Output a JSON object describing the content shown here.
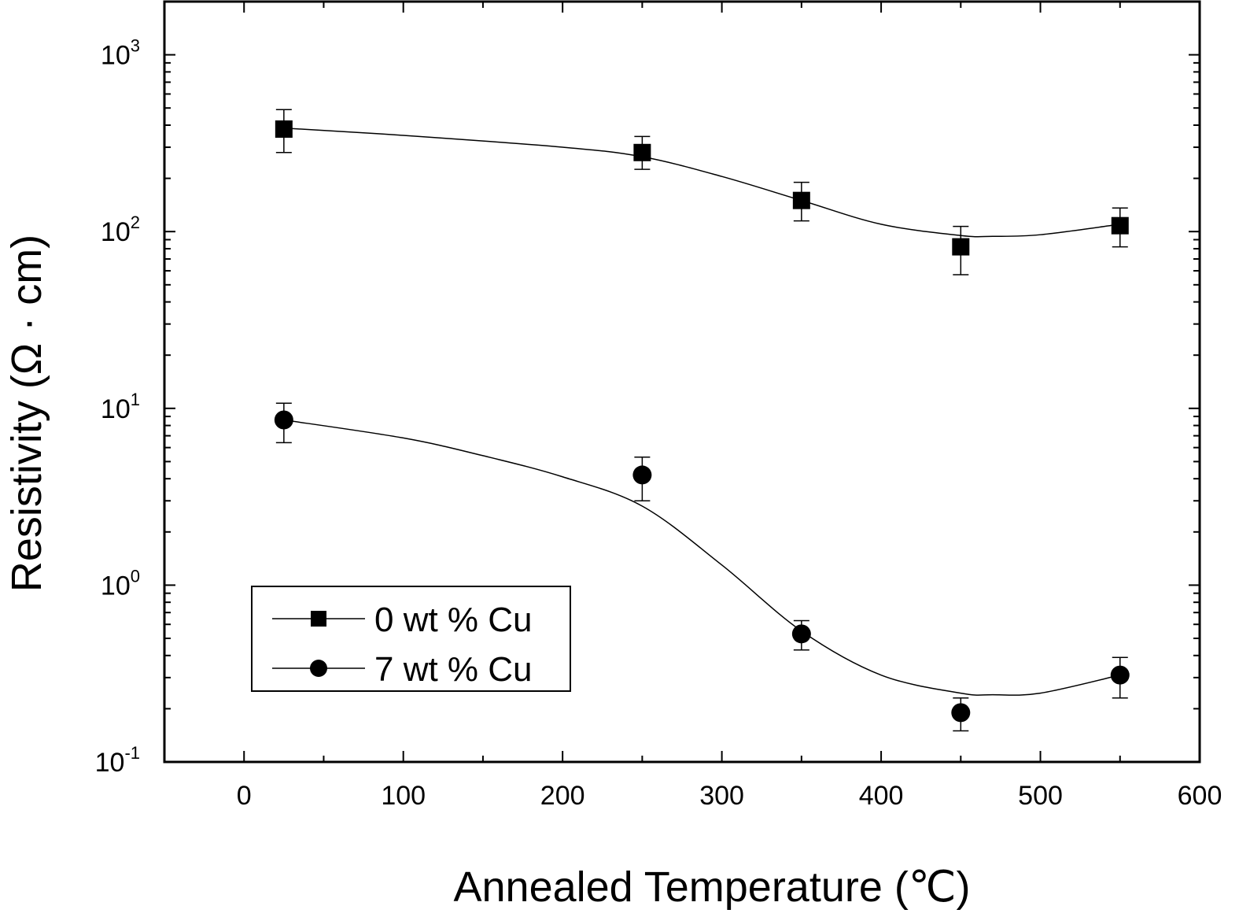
{
  "chart_data": {
    "type": "scatter",
    "xlabel": "Annealed Temperature (℃)",
    "ylabel": "Resistivity (Ω · cm)",
    "xlim": [
      -50,
      600
    ],
    "ylim": [
      0.1,
      2000
    ],
    "yscale": "log",
    "x_ticks": [
      0,
      100,
      200,
      300,
      400,
      500,
      600
    ],
    "y_ticks": [
      {
        "value": 0.1,
        "base": "10",
        "exp": "-1"
      },
      {
        "value": 1,
        "base": "10",
        "exp": "0"
      },
      {
        "value": 10,
        "base": "10",
        "exp": "1"
      },
      {
        "value": 100,
        "base": "10",
        "exp": "2"
      },
      {
        "value": 1000,
        "base": "10",
        "exp": "3"
      }
    ],
    "grid": false,
    "legend_position": "bottom-left",
    "series": [
      {
        "name": "0 wt % Cu",
        "marker": "square",
        "x": [
          25,
          250,
          350,
          450,
          550
        ],
        "y": [
          380,
          280,
          150,
          82,
          108
        ],
        "err_low": [
          280,
          225,
          115,
          57,
          82
        ],
        "err_high": [
          490,
          345,
          190,
          107,
          136
        ],
        "fit_x": [
          25,
          100,
          200,
          250,
          300,
          350,
          400,
          450,
          470,
          500,
          550
        ],
        "fit_y": [
          385,
          350,
          300,
          265,
          205,
          150,
          110,
          95,
          94,
          96,
          110
        ]
      },
      {
        "name": "7 wt % Cu",
        "marker": "circle",
        "x": [
          25,
          250,
          350,
          450,
          550
        ],
        "y": [
          8.6,
          4.2,
          0.53,
          0.19,
          0.31
        ],
        "err_low": [
          6.4,
          3.0,
          0.43,
          0.15,
          0.23
        ],
        "err_high": [
          10.7,
          5.3,
          0.63,
          0.23,
          0.39
        ],
        "fit_x": [
          25,
          100,
          150,
          200,
          250,
          300,
          350,
          400,
          450,
          470,
          500,
          550
        ],
        "fit_y": [
          8.6,
          6.8,
          5.4,
          4.1,
          2.8,
          1.3,
          0.55,
          0.31,
          0.245,
          0.24,
          0.245,
          0.31
        ]
      }
    ]
  }
}
